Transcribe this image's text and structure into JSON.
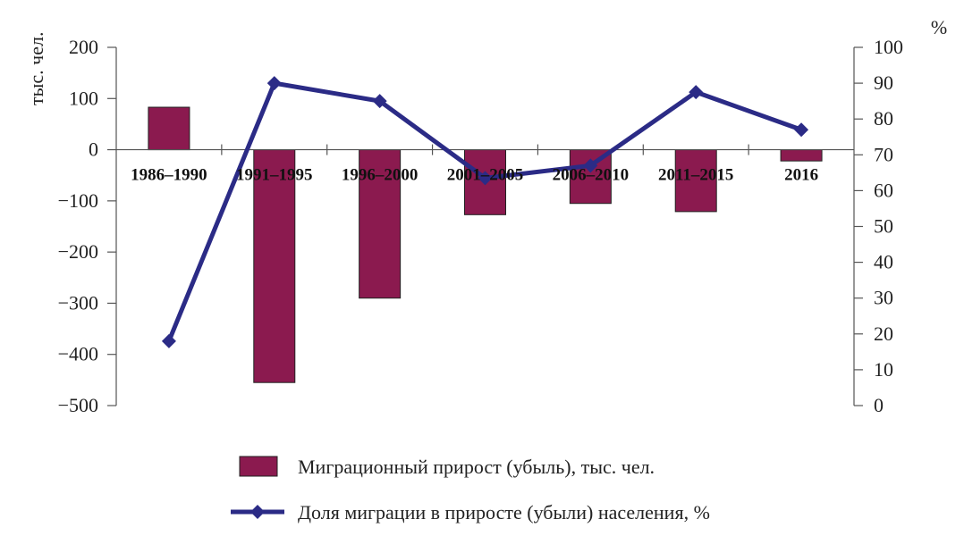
{
  "chart_data": {
    "type": "bar",
    "categories": [
      "1986–1990",
      "1991–1995",
      "1996–2000",
      "2001–2005",
      "2006–2010",
      "2011–2015",
      "2016"
    ],
    "series": [
      {
        "name": "Миграционный прирост (убыль), тыс. чел.",
        "type": "bar",
        "axis": "left",
        "values": [
          83,
          -455,
          -290,
          -127,
          -105,
          -121,
          -22
        ],
        "color": "#8b1a4f"
      },
      {
        "name": "Доля миграции в приросте (убыли) населения, %",
        "type": "line",
        "axis": "right",
        "marker": "diamond",
        "values": [
          18,
          90,
          85,
          63.5,
          67,
          87.5,
          77
        ],
        "color": "#2b2b86"
      }
    ],
    "y_left": {
      "label": "тыс. чел.",
      "ylim": [
        -500,
        200
      ],
      "ticks": [
        200,
        100,
        0,
        -100,
        -200,
        -300,
        -400,
        -500
      ],
      "tick_labels": [
        "200",
        "100",
        "0",
        "−100",
        "−200",
        "−300",
        "−400",
        "−500"
      ]
    },
    "y_right": {
      "label": "%",
      "ylim": [
        0,
        100
      ],
      "ticks": [
        100,
        90,
        80,
        70,
        60,
        50,
        40,
        30,
        20,
        10,
        0
      ]
    },
    "grid": false,
    "legend": "bottom"
  }
}
